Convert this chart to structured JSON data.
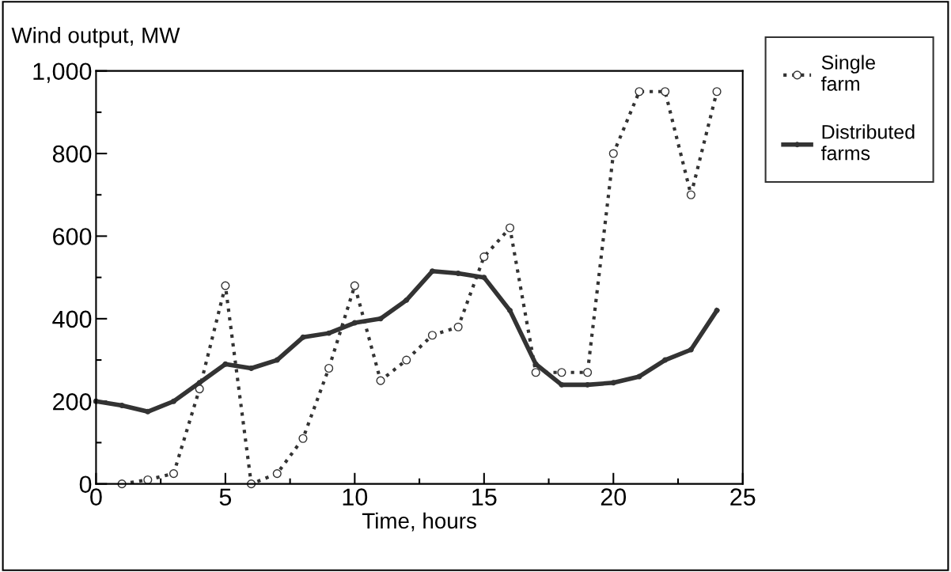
{
  "chart_data": {
    "type": "line",
    "ylabel": "Wind output, MW",
    "xlabel": "Time, hours",
    "xlim": [
      0,
      25
    ],
    "xticks": [
      0,
      5,
      10,
      15,
      20,
      25
    ],
    "ylim": [
      0,
      1000
    ],
    "yticks": [
      0,
      200,
      400,
      600,
      800,
      {
        "value": 1000,
        "label": "1,000"
      }
    ],
    "grid": false,
    "legend": "right",
    "series": [
      {
        "name": "Single\nfarm",
        "color": "#333333",
        "line_style": "dotted",
        "marker": "circle",
        "x": [
          1,
          2,
          3,
          4,
          5,
          6,
          7,
          8,
          9,
          10,
          11,
          12,
          13,
          14,
          15,
          16,
          17,
          18,
          19,
          20,
          21,
          22,
          23,
          24
        ],
        "values": [
          0,
          10,
          25,
          230,
          480,
          0,
          25,
          110,
          280,
          480,
          250,
          300,
          360,
          380,
          550,
          620,
          270,
          270,
          270,
          800,
          950,
          950,
          700,
          950
        ]
      },
      {
        "name": "Distributed\nfarms",
        "color": "#333333",
        "line_style": "solid",
        "marker": "circle",
        "x": [
          0,
          1,
          2,
          3,
          4,
          5,
          6,
          7,
          8,
          9,
          10,
          11,
          12,
          13,
          14,
          15,
          16,
          17,
          18,
          19,
          20,
          21,
          22,
          23,
          24
        ],
        "values": [
          200,
          190,
          175,
          200,
          245,
          290,
          280,
          300,
          355,
          365,
          390,
          400,
          445,
          515,
          510,
          500,
          420,
          290,
          240,
          240,
          245,
          260,
          300,
          325,
          420
        ]
      }
    ]
  }
}
